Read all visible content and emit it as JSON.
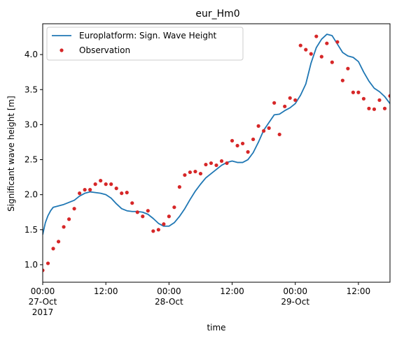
{
  "chart_data": {
    "type": "line",
    "title": "eur_Hm0",
    "xlabel": "time",
    "ylabel": "Significant wave height [m]",
    "xlim": [
      "2017-10-27 00:00",
      "2017-10-29 18:00"
    ],
    "ylim": [
      0.75,
      4.44
    ],
    "grid": false,
    "legend_position": "upper-left",
    "y_ticks": [
      "1.0",
      "1.5",
      "2.0",
      "2.5",
      "3.0",
      "3.5",
      "4.0"
    ],
    "x_ticks": [
      {
        "at": "2017-10-27 00:00",
        "lines": [
          "00:00",
          "27-Oct",
          "2017"
        ]
      },
      {
        "at": "2017-10-27 12:00",
        "lines": [
          "12:00"
        ]
      },
      {
        "at": "2017-10-28 00:00",
        "lines": [
          "00:00",
          "28-Oct"
        ]
      },
      {
        "at": "2017-10-28 12:00",
        "lines": [
          "12:00"
        ]
      },
      {
        "at": "2017-10-29 00:00",
        "lines": [
          "00:00",
          "29-Oct"
        ]
      },
      {
        "at": "2017-10-29 12:00",
        "lines": [
          "12:00"
        ]
      }
    ],
    "series": [
      {
        "name": "Europlatform: Sign. Wave Height",
        "kind": "line",
        "color": "#1f77b4",
        "x": [
          "2017-10-27 00:00",
          "2017-10-27 00:30",
          "2017-10-27 01:00",
          "2017-10-27 01:30",
          "2017-10-27 02:00",
          "2017-10-27 03:00",
          "2017-10-27 04:00",
          "2017-10-27 05:00",
          "2017-10-27 06:00",
          "2017-10-27 07:00",
          "2017-10-27 08:00",
          "2017-10-27 09:00",
          "2017-10-27 10:00",
          "2017-10-27 11:00",
          "2017-10-27 12:00",
          "2017-10-27 13:00",
          "2017-10-27 14:00",
          "2017-10-27 15:00",
          "2017-10-27 16:00",
          "2017-10-27 17:00",
          "2017-10-27 18:00",
          "2017-10-27 19:00",
          "2017-10-27 20:00",
          "2017-10-27 21:00",
          "2017-10-27 22:00",
          "2017-10-27 23:00",
          "2017-10-28 00:00",
          "2017-10-28 01:00",
          "2017-10-28 02:00",
          "2017-10-28 03:00",
          "2017-10-28 04:00",
          "2017-10-28 05:00",
          "2017-10-28 06:00",
          "2017-10-28 07:00",
          "2017-10-28 08:00",
          "2017-10-28 09:00",
          "2017-10-28 10:00",
          "2017-10-28 11:00",
          "2017-10-28 12:00",
          "2017-10-28 13:00",
          "2017-10-28 14:00",
          "2017-10-28 15:00",
          "2017-10-28 16:00",
          "2017-10-28 17:00",
          "2017-10-28 18:00",
          "2017-10-28 19:00",
          "2017-10-28 20:00",
          "2017-10-28 21:00",
          "2017-10-28 22:00",
          "2017-10-28 23:00",
          "2017-10-29 00:00",
          "2017-10-29 01:00",
          "2017-10-29 02:00",
          "2017-10-29 03:00",
          "2017-10-29 04:00",
          "2017-10-29 05:00",
          "2017-10-29 06:00",
          "2017-10-29 07:00",
          "2017-10-29 08:00",
          "2017-10-29 09:00",
          "2017-10-29 10:00",
          "2017-10-29 11:00",
          "2017-10-29 12:00",
          "2017-10-29 13:00",
          "2017-10-29 14:00",
          "2017-10-29 15:00",
          "2017-10-29 16:00",
          "2017-10-29 17:00",
          "2017-10-29 18:00"
        ],
        "y": [
          1.43,
          1.6,
          1.7,
          1.77,
          1.82,
          1.84,
          1.86,
          1.89,
          1.92,
          1.98,
          2.02,
          2.04,
          2.03,
          2.02,
          2.0,
          1.95,
          1.87,
          1.8,
          1.77,
          1.76,
          1.76,
          1.75,
          1.72,
          1.66,
          1.59,
          1.55,
          1.55,
          1.6,
          1.69,
          1.8,
          1.93,
          2.05,
          2.15,
          2.24,
          2.3,
          2.36,
          2.42,
          2.46,
          2.48,
          2.46,
          2.46,
          2.5,
          2.6,
          2.75,
          2.92,
          3.03,
          3.14,
          3.15,
          3.2,
          3.24,
          3.3,
          3.42,
          3.58,
          3.88,
          4.1,
          4.22,
          4.29,
          4.27,
          4.15,
          4.03,
          3.98,
          3.96,
          3.9,
          3.75,
          3.62,
          3.52,
          3.47,
          3.4,
          3.3
        ]
      },
      {
        "name": "Observation",
        "kind": "scatter",
        "color": "#d62728",
        "x": [
          "2017-10-27 00:00",
          "2017-10-27 01:00",
          "2017-10-27 02:00",
          "2017-10-27 03:00",
          "2017-10-27 04:00",
          "2017-10-27 05:00",
          "2017-10-27 06:00",
          "2017-10-27 07:00",
          "2017-10-27 08:00",
          "2017-10-27 09:00",
          "2017-10-27 10:00",
          "2017-10-27 11:00",
          "2017-10-27 12:00",
          "2017-10-27 13:00",
          "2017-10-27 14:00",
          "2017-10-27 15:00",
          "2017-10-27 16:00",
          "2017-10-27 17:00",
          "2017-10-27 18:00",
          "2017-10-27 19:00",
          "2017-10-27 20:00",
          "2017-10-27 21:00",
          "2017-10-27 22:00",
          "2017-10-27 23:00",
          "2017-10-28 00:00",
          "2017-10-28 01:00",
          "2017-10-28 02:00",
          "2017-10-28 03:00",
          "2017-10-28 04:00",
          "2017-10-28 05:00",
          "2017-10-28 06:00",
          "2017-10-28 07:00",
          "2017-10-28 08:00",
          "2017-10-28 09:00",
          "2017-10-28 10:00",
          "2017-10-28 11:00",
          "2017-10-28 12:00",
          "2017-10-28 13:00",
          "2017-10-28 14:00",
          "2017-10-28 15:00",
          "2017-10-28 16:00",
          "2017-10-28 17:00",
          "2017-10-28 18:00",
          "2017-10-28 19:00",
          "2017-10-28 20:00",
          "2017-10-28 21:00",
          "2017-10-28 22:00",
          "2017-10-28 23:00",
          "2017-10-29 00:00",
          "2017-10-29 01:00",
          "2017-10-29 02:00",
          "2017-10-29 03:00",
          "2017-10-29 04:00",
          "2017-10-29 05:00",
          "2017-10-29 06:00",
          "2017-10-29 07:00",
          "2017-10-29 08:00",
          "2017-10-29 09:00",
          "2017-10-29 10:00",
          "2017-10-29 11:00",
          "2017-10-29 12:00",
          "2017-10-29 13:00",
          "2017-10-29 14:00",
          "2017-10-29 15:00",
          "2017-10-29 16:00",
          "2017-10-29 17:00",
          "2017-10-29 18:00"
        ],
        "y": [
          0.92,
          1.02,
          1.23,
          1.33,
          1.54,
          1.65,
          1.8,
          2.02,
          2.07,
          2.07,
          2.15,
          2.2,
          2.15,
          2.15,
          2.09,
          2.02,
          2.03,
          1.88,
          1.75,
          1.69,
          1.77,
          1.48,
          1.5,
          1.58,
          1.69,
          1.82,
          2.11,
          2.28,
          2.32,
          2.33,
          2.3,
          2.43,
          2.45,
          2.42,
          2.48,
          2.45,
          2.77,
          2.7,
          2.73,
          2.61,
          2.79,
          2.98,
          2.91,
          2.95,
          3.31,
          2.86,
          3.26,
          3.38,
          3.35,
          4.13,
          4.07,
          4.01,
          4.26,
          3.97,
          4.16,
          3.89,
          4.18,
          3.63,
          3.8,
          3.46,
          3.46,
          3.37,
          3.23,
          3.22,
          3.35,
          3.23,
          3.41
        ]
      }
    ]
  }
}
